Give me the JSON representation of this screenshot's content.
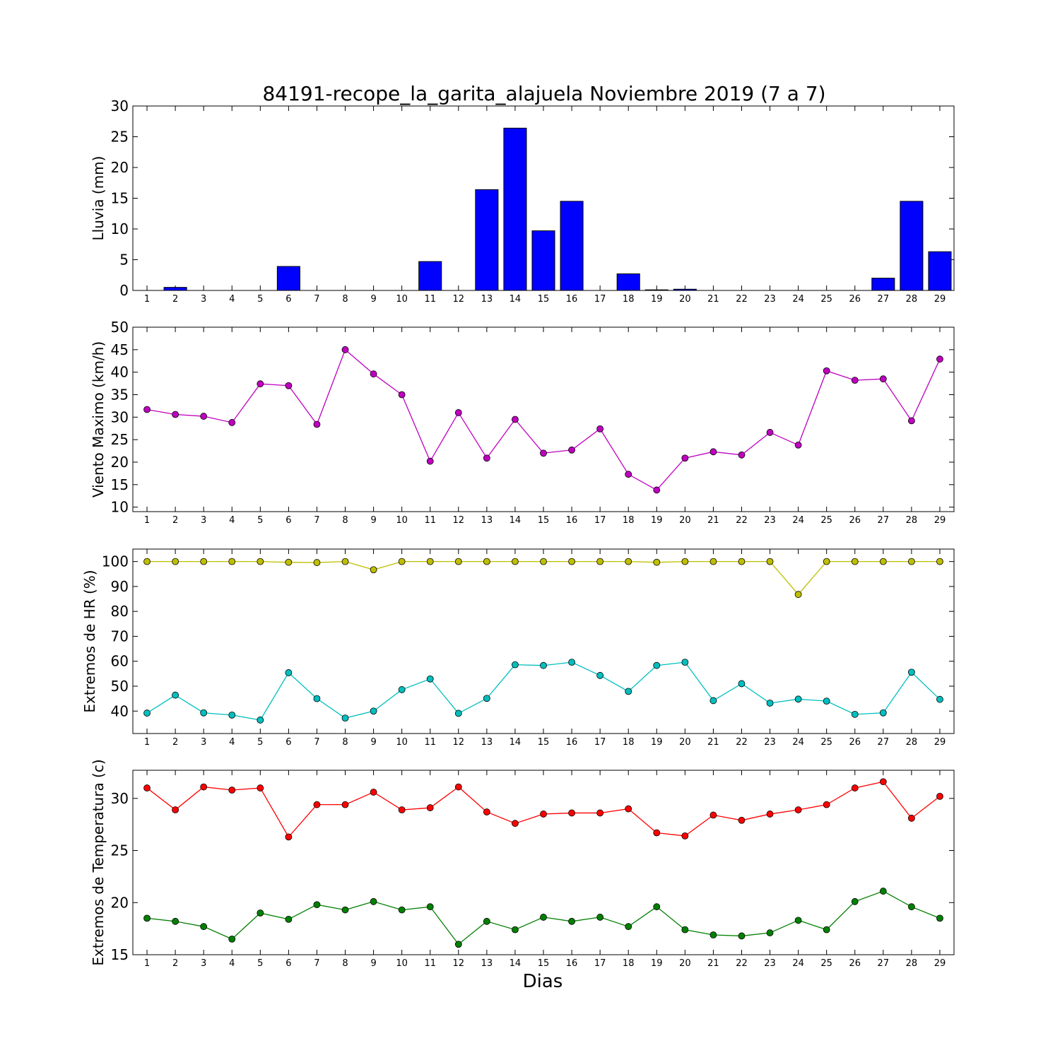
{
  "title": "84191-recope_la_garita_alajuela Noviembre 2019  (7 a 7)",
  "xlabel": "Dias",
  "chart_data": [
    {
      "type": "bar",
      "ylabel": "Lluvia (mm)",
      "ylim": [
        0,
        30
      ],
      "yticks": [
        0,
        5,
        10,
        15,
        20,
        25,
        30
      ],
      "xlim": [
        0.5,
        29.5
      ],
      "categories": [
        1,
        2,
        3,
        4,
        5,
        6,
        7,
        8,
        9,
        10,
        11,
        12,
        13,
        14,
        15,
        16,
        17,
        18,
        19,
        20,
        21,
        22,
        23,
        24,
        25,
        26,
        27,
        28,
        29
      ],
      "series": [
        {
          "color": "#0000ff",
          "values": [
            0,
            0.5,
            0,
            0,
            0,
            3.9,
            0,
            0,
            0,
            0,
            4.7,
            0,
            16.4,
            26.4,
            9.7,
            14.5,
            0,
            2.7,
            0.1,
            0.2,
            0,
            0,
            0,
            0,
            0,
            0,
            2.0,
            14.5,
            6.3
          ]
        }
      ]
    },
    {
      "type": "line",
      "ylabel": "Viento Maximo (km/h)",
      "ylim": [
        9,
        50
      ],
      "yticks": [
        10,
        15,
        20,
        25,
        30,
        35,
        40,
        45,
        50
      ],
      "xlim": [
        0.5,
        29.5
      ],
      "categories": [
        1,
        2,
        3,
        4,
        5,
        6,
        7,
        8,
        9,
        10,
        11,
        12,
        13,
        14,
        15,
        16,
        17,
        18,
        19,
        20,
        21,
        22,
        23,
        24,
        25,
        26,
        27,
        28,
        29
      ],
      "series": [
        {
          "color": "#bf00bf",
          "values": [
            31.7,
            30.6,
            30.2,
            28.8,
            37.4,
            37.0,
            28.4,
            45.0,
            39.6,
            35.0,
            20.2,
            31.0,
            20.9,
            29.5,
            22.0,
            22.7,
            27.4,
            17.3,
            13.8,
            20.9,
            22.3,
            21.6,
            26.6,
            23.8,
            40.3,
            38.2,
            38.5,
            29.2,
            42.9
          ]
        }
      ]
    },
    {
      "type": "line",
      "ylabel": "Extremos de HR (%)",
      "ylim": [
        31,
        105
      ],
      "yticks": [
        40,
        50,
        60,
        70,
        80,
        90,
        100
      ],
      "xlim": [
        0.5,
        29.5
      ],
      "categories": [
        1,
        2,
        3,
        4,
        5,
        6,
        7,
        8,
        9,
        10,
        11,
        12,
        13,
        14,
        15,
        16,
        17,
        18,
        19,
        20,
        21,
        22,
        23,
        24,
        25,
        26,
        27,
        28,
        29
      ],
      "series": [
        {
          "color": "#bfbf00",
          "values": [
            100,
            100,
            100,
            100,
            100,
            99.7,
            99.6,
            100,
            96.7,
            100,
            100,
            100,
            100,
            100,
            100,
            100,
            100,
            100,
            99.7,
            100,
            100,
            100,
            100,
            86.8,
            100,
            100,
            100,
            100,
            100
          ]
        },
        {
          "color": "#00bfbf",
          "values": [
            39.2,
            46.4,
            39.3,
            38.4,
            36.4,
            55.4,
            45.0,
            37.2,
            40.0,
            48.6,
            52.9,
            39.1,
            45.1,
            58.6,
            58.3,
            59.6,
            54.3,
            47.9,
            58.3,
            59.6,
            44.2,
            51.0,
            43.2,
            44.8,
            44.0,
            38.7,
            39.3,
            55.6,
            44.7
          ]
        }
      ]
    },
    {
      "type": "line",
      "ylabel": "Extremos de Temperatura (c)",
      "ylim": [
        15,
        32.7
      ],
      "yticks": [
        15,
        20,
        25,
        30
      ],
      "xlim": [
        0.5,
        29.5
      ],
      "categories": [
        1,
        2,
        3,
        4,
        5,
        6,
        7,
        8,
        9,
        10,
        11,
        12,
        13,
        14,
        15,
        16,
        17,
        18,
        19,
        20,
        21,
        22,
        23,
        24,
        25,
        26,
        27,
        28,
        29
      ],
      "series": [
        {
          "color": "#ff0000",
          "values": [
            31.0,
            28.9,
            31.1,
            30.8,
            31.0,
            26.3,
            29.4,
            29.4,
            30.6,
            28.9,
            29.1,
            31.1,
            28.7,
            27.6,
            28.5,
            28.6,
            28.6,
            29.0,
            26.7,
            26.4,
            28.4,
            27.9,
            28.5,
            28.9,
            29.4,
            31.0,
            31.6,
            28.1,
            30.2
          ]
        },
        {
          "color": "#008000",
          "values": [
            18.5,
            18.2,
            17.7,
            16.5,
            19.0,
            18.4,
            19.8,
            19.3,
            20.1,
            19.3,
            19.6,
            16.0,
            18.2,
            17.4,
            18.6,
            18.2,
            18.6,
            17.7,
            19.6,
            17.4,
            16.9,
            16.8,
            17.1,
            18.3,
            17.4,
            20.1,
            21.1,
            19.6,
            18.5
          ]
        }
      ]
    }
  ]
}
